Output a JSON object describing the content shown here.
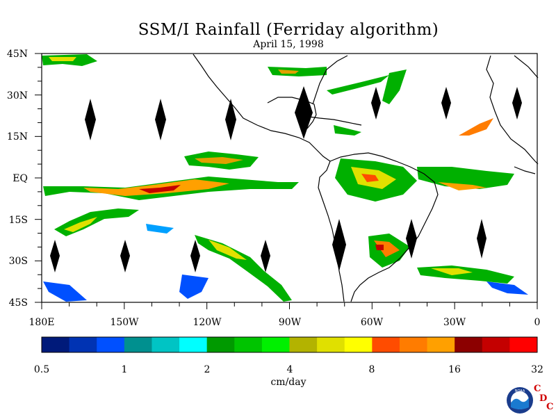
{
  "title": "SSM/I Rainfall (Ferriday algorithm)",
  "date": "April 15, 1998",
  "lat_labels": [
    "45N",
    "30N",
    "15N",
    "EQ",
    "15S",
    "30S",
    "45S"
  ],
  "lon_labels": [
    "180E",
    "150W",
    "120W",
    "90W",
    "60W",
    "30W",
    "0"
  ],
  "colorbar": {
    "colors": [
      "#001a7a",
      "#0033b3",
      "#0050ff",
      "#00908f",
      "#00c4c4",
      "#00ffff",
      "#009a00",
      "#00c400",
      "#00f000",
      "#b3b300",
      "#e0e000",
      "#ffff00",
      "#ff4c00",
      "#ff7c00",
      "#ffa000",
      "#8c0000",
      "#c40000",
      "#ff0000"
    ],
    "tick_labels": [
      "0.5",
      "1",
      "2",
      "4",
      "8",
      "16",
      "32"
    ],
    "units": "cm/day"
  },
  "logo": {
    "noaa_text": "NOAA",
    "cdc_letters": [
      "C",
      "D",
      "C"
    ]
  },
  "chart_data": {
    "type": "heatmap",
    "title": "SSM/I Rainfall (Ferriday algorithm)",
    "subtitle": "April 15, 1998",
    "lon_range": [
      -180,
      0
    ],
    "lat_range": [
      -45,
      45
    ],
    "colorbar_levels_cm_per_day": [
      0.5,
      1,
      2,
      4,
      8,
      16,
      32
    ],
    "units": "cm/day"
  }
}
